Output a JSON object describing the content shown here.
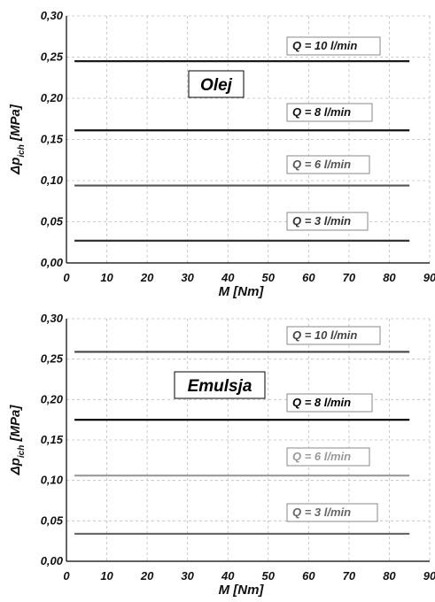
{
  "chart_data": [
    {
      "type": "line",
      "title": "Olej",
      "xlabel": "M  [Nm]",
      "ylabel": "Δp_ich [MPa]",
      "xlim": [
        0,
        90
      ],
      "ylim": [
        0,
        0.3
      ],
      "x_ticks": [
        "0",
        "10",
        "20",
        "30",
        "40",
        "50",
        "60",
        "70",
        "80",
        "90"
      ],
      "y_ticks": [
        "0,00",
        "0,05",
        "0,10",
        "0,15",
        "0,20",
        "0,25",
        "0,30"
      ],
      "grid": true,
      "series": [
        {
          "name": "Q = 10 l/min",
          "x": [
            2,
            85
          ],
          "y": [
            0.245,
            0.245
          ],
          "color": "#1a1a1a"
        },
        {
          "name": "Q = 8 l/min",
          "x": [
            2,
            85
          ],
          "y": [
            0.161,
            0.161
          ],
          "color": "#111111"
        },
        {
          "name": "Q = 6 l/min",
          "x": [
            2,
            85
          ],
          "y": [
            0.094,
            0.094
          ],
          "color": "#555555"
        },
        {
          "name": "Q = 3 l/min",
          "x": [
            2,
            85
          ],
          "y": [
            0.027,
            0.027
          ],
          "color": "#333333"
        }
      ]
    },
    {
      "type": "line",
      "title": "Emulsja",
      "xlabel": "M  [Nm]",
      "ylabel": "Δp_ich [MPa]",
      "xlim": [
        0,
        90
      ],
      "ylim": [
        0,
        0.3
      ],
      "x_ticks": [
        "0",
        "10",
        "20",
        "30",
        "40",
        "50",
        "60",
        "70",
        "80",
        "90"
      ],
      "y_ticks": [
        "0,00",
        "0,05",
        "0,10",
        "0,15",
        "0,20",
        "0,25",
        "0,30"
      ],
      "grid": true,
      "series": [
        {
          "name": "Q = 10 l/min",
          "x": [
            2,
            85
          ],
          "y": [
            0.259,
            0.259
          ],
          "color": "#444444"
        },
        {
          "name": "Q = 8 l/min",
          "x": [
            2,
            85
          ],
          "y": [
            0.175,
            0.175
          ],
          "color": "#000000"
        },
        {
          "name": "Q = 6 l/min",
          "x": [
            2,
            85
          ],
          "y": [
            0.106,
            0.106
          ],
          "color": "#999999"
        },
        {
          "name": "Q = 3 l/min",
          "x": [
            2,
            85
          ],
          "y": [
            0.034,
            0.034
          ],
          "color": "#666666"
        }
      ]
    }
  ]
}
